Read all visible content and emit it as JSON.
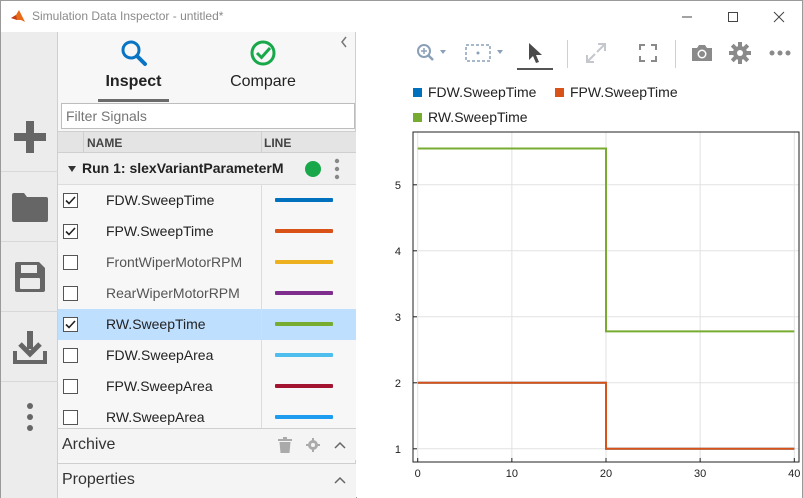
{
  "window": {
    "title": "Simulation Data Inspector - untitled*"
  },
  "tabs": [
    {
      "label": "Inspect",
      "active": true
    },
    {
      "label": "Compare",
      "active": false
    }
  ],
  "filter": {
    "placeholder": "Filter Signals"
  },
  "columns": {
    "name": "NAME",
    "line": "LINE"
  },
  "run": {
    "label": "Run 1: slexVariantParameterM",
    "status_color": "#18a84a"
  },
  "signals": [
    {
      "name": "FDW.SweepTime",
      "checked": true,
      "selected": false,
      "color": "#0072bd"
    },
    {
      "name": "FPW.SweepTime",
      "checked": true,
      "selected": false,
      "color": "#d95319"
    },
    {
      "name": "FrontWiperMotorRPM",
      "checked": false,
      "selected": false,
      "color": "#edb120"
    },
    {
      "name": "RearWiperMotorRPM",
      "checked": false,
      "selected": false,
      "color": "#7e2f8e"
    },
    {
      "name": "RW.SweepTime",
      "checked": true,
      "selected": true,
      "color": "#77ac30"
    },
    {
      "name": "FDW.SweepArea",
      "checked": false,
      "selected": false,
      "color": "#4dbeee"
    },
    {
      "name": "FPW.SweepArea",
      "checked": false,
      "selected": false,
      "color": "#a2142f"
    },
    {
      "name": "RW.SweepArea",
      "checked": false,
      "selected": false,
      "color": "#1e9cf0"
    }
  ],
  "sections": {
    "archive": "Archive",
    "properties": "Properties"
  },
  "left_toolbar": [
    "add-icon",
    "folder-icon",
    "save-icon",
    "download-icon",
    "more-vertical-icon"
  ],
  "plot_toolbar": [
    "zoom-icon",
    "fit-to-view-icon",
    "cursor-icon",
    "expand-icon",
    "fullscreen-icon",
    "camera-icon",
    "gear-icon",
    "more-horizontal-icon"
  ],
  "chart_data": {
    "type": "line",
    "title": "",
    "xlabel": "",
    "ylabel": "",
    "xlim": [
      -0.5,
      40.5
    ],
    "ylim": [
      0.8,
      5.8
    ],
    "xticks": [
      0,
      10,
      20,
      30,
      40
    ],
    "yticks": [
      1,
      2,
      3,
      4,
      5
    ],
    "grid": true,
    "legend_position": "top",
    "series": [
      {
        "name": "FDW.SweepTime",
        "color": "#0072bd",
        "x": [
          0,
          20,
          20,
          40
        ],
        "y": [
          2,
          2,
          1,
          1
        ]
      },
      {
        "name": "FPW.SweepTime",
        "color": "#d95319",
        "x": [
          0,
          20,
          20,
          40
        ],
        "y": [
          2,
          2,
          1,
          1
        ]
      },
      {
        "name": "RW.SweepTime",
        "color": "#77ac30",
        "x": [
          0,
          20,
          20,
          40
        ],
        "y": [
          5.55,
          5.55,
          2.78,
          2.78
        ]
      }
    ]
  }
}
